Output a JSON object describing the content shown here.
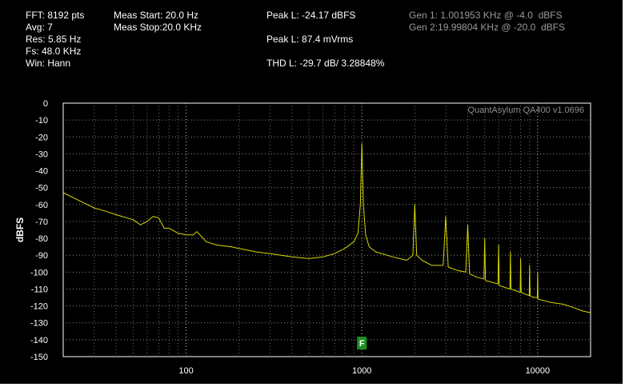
{
  "info": {
    "fft": "FFT: 8192 pts",
    "avg": "Avg: 7",
    "res": "Res: 5.85 Hz",
    "fs": "Fs: 48.0 KHz",
    "win": "Win: Hann",
    "meas_start": "Meas Start: 20.0 Hz",
    "meas_stop": "Meas Stop:20.0 KHz",
    "peak_dbfs": "Peak L: -24.17 dBFS",
    "peak_mvrms": "Peak L: 87.4 mVrms",
    "thd": "THD L: -29.7 dB/ 3.28848%",
    "gen1": "Gen 1: 1.001953 KHz @ -4.0  dBFS",
    "gen2": "Gen 2:19.99804 KHz @ -20.0  dBFS"
  },
  "chart_data": {
    "type": "line",
    "watermark": "QuantAsylum QA400 v1.0696",
    "ylabel": "dBFS",
    "xlabel": "",
    "x_scale": "log",
    "xlim": [
      20,
      20000
    ],
    "ylim": [
      -150,
      0
    ],
    "yticks": [
      0,
      -10,
      -20,
      -30,
      -40,
      -50,
      -60,
      -70,
      -80,
      -90,
      -100,
      -110,
      -120,
      -130,
      -140,
      -150
    ],
    "xtick_labels": [
      {
        "value": 100,
        "label": "100"
      },
      {
        "value": 1000,
        "label": "1000"
      },
      {
        "value": 10000,
        "label": "10000"
      }
    ],
    "grid": true,
    "marker": {
      "label": "F",
      "x": 1000,
      "color": "#1f8f1f"
    },
    "line_color": "#d8d800",
    "series": [
      {
        "points": [
          [
            20,
            -53
          ],
          [
            25,
            -58
          ],
          [
            30,
            -62
          ],
          [
            35,
            -64
          ],
          [
            40,
            -66
          ],
          [
            50,
            -69
          ],
          [
            55,
            -72
          ],
          [
            60,
            -70
          ],
          [
            65,
            -67
          ],
          [
            70,
            -68
          ],
          [
            75,
            -74
          ],
          [
            80,
            -74
          ],
          [
            90,
            -77
          ],
          [
            100,
            -78
          ],
          [
            110,
            -78
          ],
          [
            115,
            -76
          ],
          [
            120,
            -78
          ],
          [
            130,
            -82
          ],
          [
            150,
            -84
          ],
          [
            180,
            -85
          ],
          [
            200,
            -86
          ],
          [
            250,
            -88
          ],
          [
            300,
            -89
          ],
          [
            400,
            -91
          ],
          [
            500,
            -92
          ],
          [
            600,
            -91
          ],
          [
            700,
            -89
          ],
          [
            800,
            -86
          ],
          [
            900,
            -82
          ],
          [
            950,
            -77
          ],
          [
            980,
            -60
          ],
          [
            1000,
            -24
          ],
          [
            1020,
            -60
          ],
          [
            1050,
            -78
          ],
          [
            1100,
            -85
          ],
          [
            1200,
            -88
          ],
          [
            1500,
            -91
          ],
          [
            1800,
            -93
          ],
          [
            1950,
            -90
          ],
          [
            2000,
            -60
          ],
          [
            2050,
            -90
          ],
          [
            2200,
            -93
          ],
          [
            2500,
            -96
          ],
          [
            2900,
            -96
          ],
          [
            3000,
            -67
          ],
          [
            3100,
            -97
          ],
          [
            3500,
            -99
          ],
          [
            3900,
            -100
          ],
          [
            4000,
            -72
          ],
          [
            4100,
            -101
          ],
          [
            4500,
            -103
          ],
          [
            4950,
            -104
          ],
          [
            5000,
            -80
          ],
          [
            5050,
            -105
          ],
          [
            5500,
            -106
          ],
          [
            5950,
            -107
          ],
          [
            6000,
            -84
          ],
          [
            6050,
            -108
          ],
          [
            6500,
            -109
          ],
          [
            6950,
            -110
          ],
          [
            7000,
            -88
          ],
          [
            7050,
            -110
          ],
          [
            7500,
            -111
          ],
          [
            7950,
            -112
          ],
          [
            8000,
            -92
          ],
          [
            8050,
            -112
          ],
          [
            8500,
            -113
          ],
          [
            8950,
            -114
          ],
          [
            9000,
            -96
          ],
          [
            9050,
            -114
          ],
          [
            9500,
            -115
          ],
          [
            9950,
            -115
          ],
          [
            10000,
            -100
          ],
          [
            10050,
            -116
          ],
          [
            11000,
            -117
          ],
          [
            12000,
            -118
          ],
          [
            14000,
            -119
          ],
          [
            16000,
            -121
          ],
          [
            18000,
            -123
          ],
          [
            20000,
            -124
          ]
        ]
      }
    ]
  }
}
